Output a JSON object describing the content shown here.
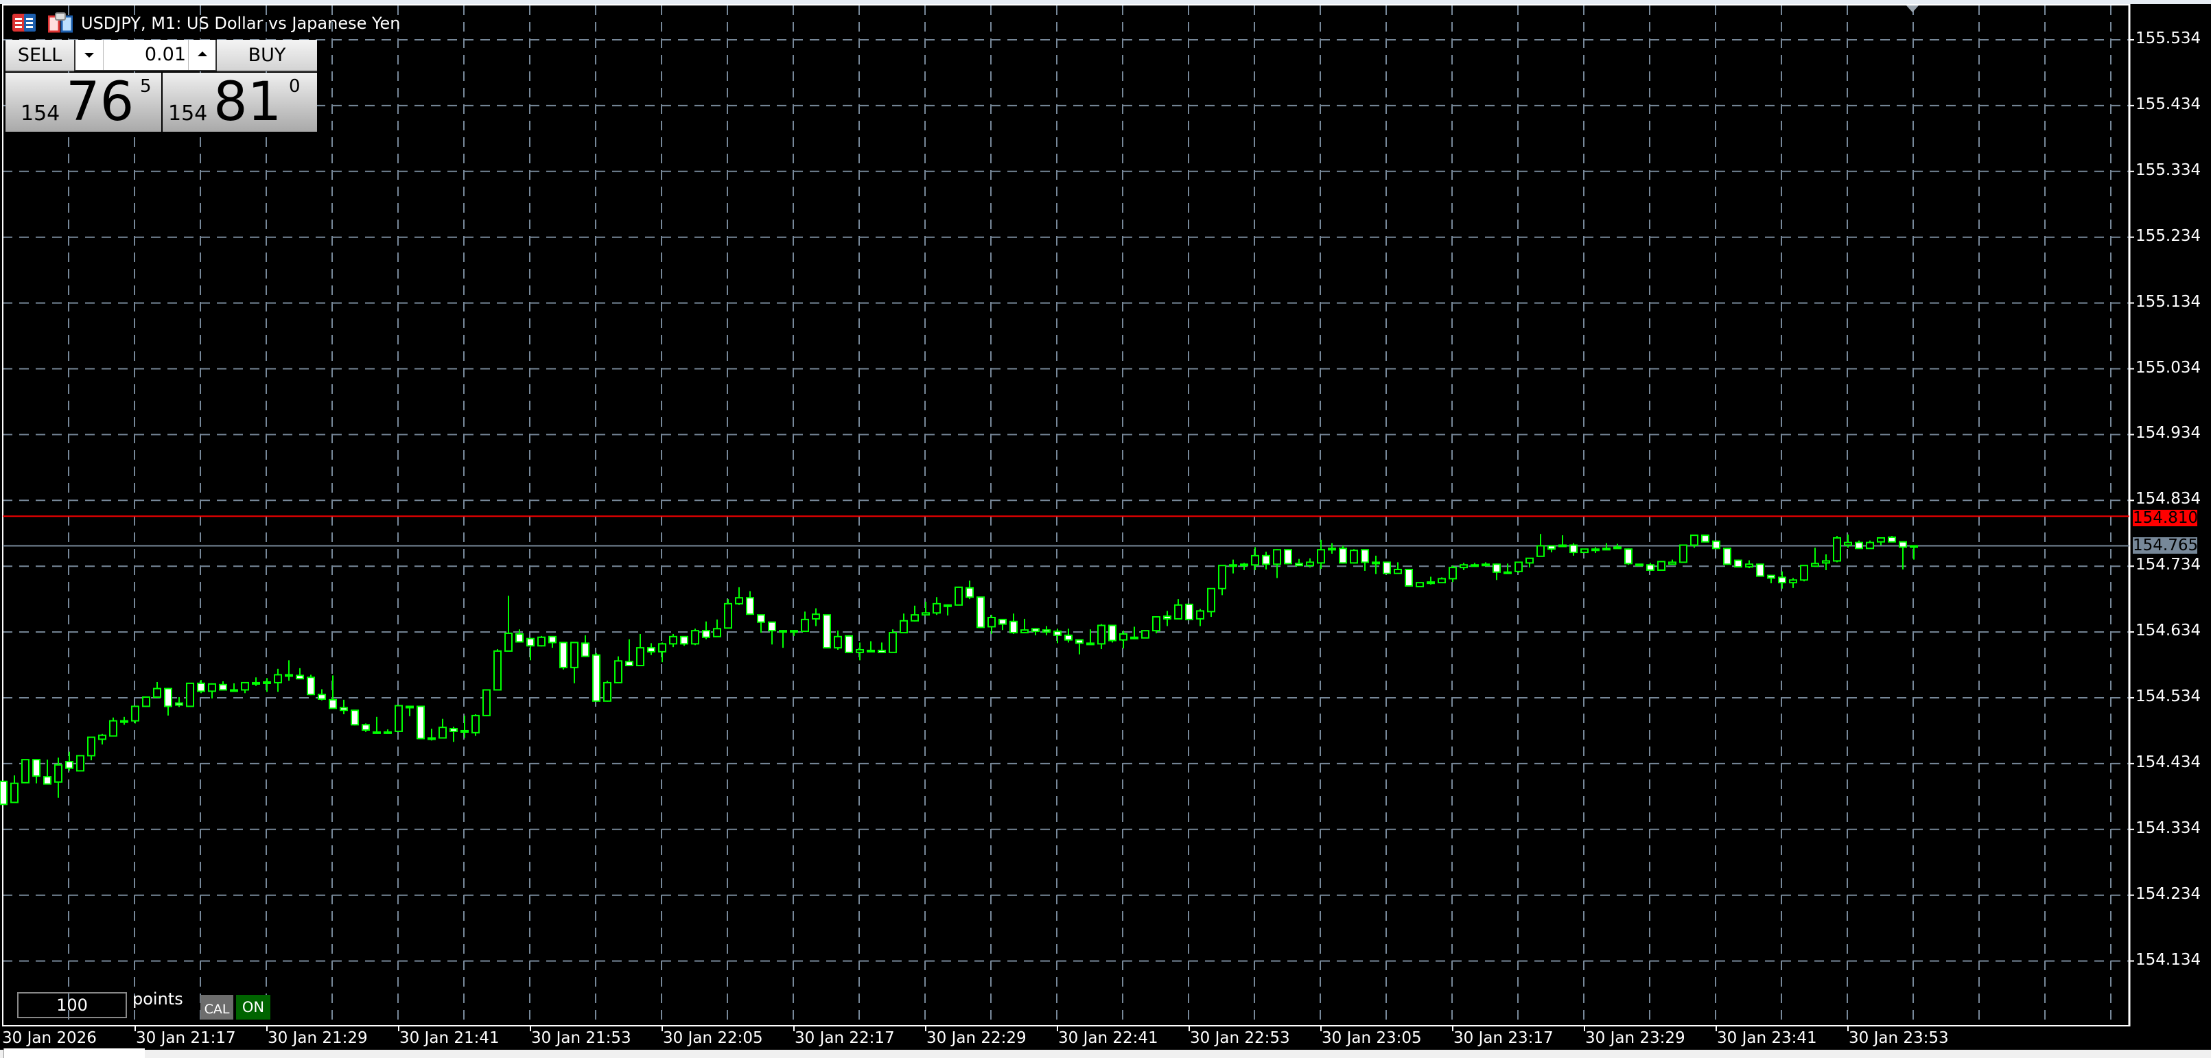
{
  "window": {
    "title": "USDJPY, M1:  US Dollar vs Japanese Yen",
    "icons": [
      "ticker-list-icon",
      "chart-window-icon"
    ]
  },
  "trade_panel": {
    "sell_label": "SELL",
    "buy_label": "BUY",
    "lot_value": "0.01",
    "sell_price": {
      "prefix": "154",
      "big": "76",
      "sup": "5"
    },
    "buy_price": {
      "prefix": "154",
      "big": "81",
      "sup": "0"
    }
  },
  "bottom_tools": {
    "points_value": "100",
    "points_label": "points",
    "cal_label": "CAL",
    "on_label": "ON"
  },
  "price_markers": {
    "ask": "154.810",
    "bid": "154.765",
    "ask_color": "#ff0000",
    "bid_color": "#778899"
  },
  "colors": {
    "background": "#000000",
    "grid": "#778899",
    "bull_outline": "#00ff00",
    "bear_fill": "#ffffff"
  },
  "chart_data": {
    "type": "candlestick",
    "symbol": "USDJPY",
    "timeframe": "M1",
    "grid": true,
    "ylim": [
      154.05,
      155.58
    ],
    "y_ticks": [
      "155.534",
      "155.434",
      "155.334",
      "155.234",
      "155.134",
      "155.034",
      "154.934",
      "154.834",
      "154.734",
      "154.634",
      "154.534",
      "154.434",
      "154.334",
      "154.234",
      "154.134"
    ],
    "x_ticks": [
      "30 Jan 2026",
      "30 Jan 21:17",
      "30 Jan 21:29",
      "30 Jan 21:41",
      "30 Jan 21:53",
      "30 Jan 22:05",
      "30 Jan 22:17",
      "30 Jan 22:29",
      "30 Jan 22:41",
      "30 Jan 22:53",
      "30 Jan 23:05",
      "30 Jan 23:17",
      "30 Jan 23:29",
      "30 Jan 23:41",
      "30 Jan 23:53"
    ],
    "candle_fields": [
      "time",
      "open",
      "high",
      "low",
      "close"
    ],
    "candles": [
      [
        "21:05",
        154.407,
        154.407,
        154.372,
        154.372
      ],
      [
        "21:06",
        154.375,
        154.416,
        154.375,
        154.404
      ],
      [
        "21:07",
        154.405,
        154.44,
        154.405,
        154.44
      ],
      [
        "21:08",
        154.44,
        154.44,
        154.404,
        154.415
      ],
      [
        "21:09",
        154.414,
        154.44,
        154.403,
        154.403
      ],
      [
        "21:10",
        154.406,
        154.443,
        154.382,
        154.432
      ],
      [
        "21:11",
        154.437,
        154.452,
        154.423,
        154.427
      ],
      [
        "21:12",
        154.423,
        154.446,
        154.423,
        154.446
      ],
      [
        "21:13",
        154.446,
        154.474,
        154.439,
        154.474
      ],
      [
        "21:14",
        154.471,
        154.479,
        154.463,
        154.477
      ],
      [
        "21:15",
        154.476,
        154.504,
        154.476,
        154.499
      ],
      [
        "21:16",
        154.499,
        154.505,
        154.493,
        154.499
      ],
      [
        "21:17",
        154.499,
        154.522,
        154.495,
        154.521
      ],
      [
        "21:18",
        154.521,
        154.535,
        154.52,
        154.535
      ],
      [
        "21:19",
        154.535,
        154.558,
        154.535,
        154.548
      ],
      [
        "21:20",
        154.548,
        154.549,
        154.507,
        154.521
      ],
      [
        "21:21",
        154.526,
        154.535,
        154.52,
        154.523
      ],
      [
        "21:22",
        154.521,
        154.556,
        154.521,
        154.556
      ],
      [
        "21:23",
        154.556,
        154.561,
        154.541,
        154.544
      ],
      [
        "21:24",
        154.544,
        154.556,
        154.533,
        154.555
      ],
      [
        "21:25",
        154.554,
        154.559,
        154.546,
        154.546
      ],
      [
        "21:26",
        154.546,
        154.556,
        154.543,
        154.546
      ],
      [
        "21:27",
        154.546,
        154.558,
        154.541,
        154.557
      ],
      [
        "21:28",
        154.557,
        154.565,
        154.552,
        154.557
      ],
      [
        "21:29",
        154.558,
        154.564,
        154.543,
        154.558
      ],
      [
        "21:30",
        154.557,
        154.578,
        154.543,
        154.569
      ],
      [
        "21:31",
        154.569,
        154.591,
        154.56,
        154.569
      ],
      [
        "21:32",
        154.568,
        154.579,
        154.563,
        154.563
      ],
      [
        "21:33",
        154.565,
        154.569,
        154.538,
        154.539
      ],
      [
        "21:34",
        154.539,
        154.547,
        154.53,
        154.532
      ],
      [
        "21:35",
        154.531,
        154.568,
        154.518,
        154.518
      ],
      [
        "21:36",
        154.519,
        154.531,
        154.509,
        154.515
      ],
      [
        "21:37",
        154.515,
        154.515,
        154.492,
        154.493
      ],
      [
        "21:38",
        154.493,
        154.495,
        154.482,
        154.485
      ],
      [
        "21:39",
        154.482,
        154.505,
        154.482,
        154.482
      ],
      [
        "21:40",
        154.482,
        154.486,
        154.482,
        154.482
      ],
      [
        "21:41",
        154.483,
        154.522,
        154.483,
        154.522
      ],
      [
        "21:42",
        154.521,
        154.521,
        154.506,
        154.521
      ],
      [
        "21:43",
        154.521,
        154.521,
        154.472,
        154.472
      ],
      [
        "21:44",
        154.473,
        154.487,
        154.469,
        154.473
      ],
      [
        "21:45",
        154.473,
        154.502,
        154.472,
        154.489
      ],
      [
        "21:46",
        154.487,
        154.49,
        154.467,
        154.483
      ],
      [
        "21:47",
        154.484,
        154.507,
        154.473,
        154.482
      ],
      [
        "21:48",
        154.481,
        154.509,
        154.476,
        154.507
      ],
      [
        "21:49",
        154.507,
        154.547,
        154.506,
        154.546
      ],
      [
        "21:50",
        154.546,
        154.608,
        154.546,
        154.605
      ],
      [
        "21:51",
        154.605,
        154.689,
        154.605,
        154.632
      ],
      [
        "21:52",
        154.631,
        154.638,
        154.619,
        154.619
      ],
      [
        "21:53",
        154.624,
        154.624,
        154.591,
        154.613
      ],
      [
        "21:54",
        154.613,
        154.628,
        154.612,
        154.626
      ],
      [
        "21:55",
        154.627,
        154.627,
        154.61,
        154.618
      ],
      [
        "21:56",
        154.618,
        154.618,
        154.577,
        154.58
      ],
      [
        "21:57",
        154.58,
        154.619,
        154.556,
        154.618
      ],
      [
        "21:58",
        154.617,
        154.629,
        154.597,
        154.597
      ],
      [
        "21:59",
        154.599,
        154.602,
        154.528,
        154.529
      ],
      [
        "22:00",
        154.529,
        154.56,
        154.528,
        154.557
      ],
      [
        "22:01",
        154.557,
        154.597,
        154.556,
        154.59
      ],
      [
        "22:02",
        154.589,
        154.623,
        154.583,
        154.583
      ],
      [
        "22:03",
        154.583,
        154.631,
        154.582,
        154.61
      ],
      [
        "22:04",
        154.61,
        154.617,
        154.599,
        154.604
      ],
      [
        "22:05",
        154.604,
        154.618,
        154.588,
        154.616
      ],
      [
        "22:06",
        154.616,
        154.631,
        154.611,
        154.627
      ],
      [
        "22:07",
        154.627,
        154.627,
        154.613,
        154.616
      ],
      [
        "22:08",
        154.616,
        154.639,
        154.614,
        154.636
      ],
      [
        "22:09",
        154.636,
        154.65,
        154.623,
        154.626
      ],
      [
        "22:10",
        154.627,
        154.653,
        154.627,
        154.639
      ],
      [
        "22:11",
        154.64,
        154.684,
        154.64,
        154.677
      ],
      [
        "22:12",
        154.677,
        154.702,
        154.675,
        154.686
      ],
      [
        "22:13",
        154.686,
        154.696,
        154.661,
        154.661
      ],
      [
        "22:14",
        154.66,
        154.66,
        154.633,
        154.649
      ],
      [
        "22:15",
        154.649,
        154.649,
        154.615,
        154.636
      ],
      [
        "22:16",
        154.636,
        154.637,
        154.61,
        154.636
      ],
      [
        "22:17",
        154.636,
        154.637,
        154.628,
        154.634
      ],
      [
        "22:18",
        154.635,
        154.665,
        154.635,
        154.653
      ],
      [
        "22:19",
        154.654,
        154.67,
        154.643,
        154.661
      ],
      [
        "22:20",
        154.66,
        154.66,
        154.61,
        154.61
      ],
      [
        "22:21",
        154.61,
        154.636,
        154.607,
        154.627
      ],
      [
        "22:22",
        154.628,
        154.629,
        154.602,
        154.603
      ],
      [
        "22:23",
        154.603,
        154.618,
        154.591,
        154.607
      ],
      [
        "22:24",
        154.606,
        154.62,
        154.606,
        154.606
      ],
      [
        "22:25",
        154.606,
        154.618,
        154.603,
        154.603
      ],
      [
        "22:26",
        154.603,
        154.638,
        154.603,
        154.633
      ],
      [
        "22:27",
        154.633,
        154.662,
        154.632,
        154.651
      ],
      [
        "22:28",
        154.651,
        154.674,
        154.65,
        154.66
      ],
      [
        "22:29",
        154.66,
        154.68,
        154.66,
        154.663
      ],
      [
        "22:30",
        154.663,
        154.687,
        154.66,
        154.677
      ],
      [
        "22:31",
        154.675,
        154.676,
        154.659,
        154.675
      ],
      [
        "22:32",
        154.675,
        154.703,
        154.675,
        154.702
      ],
      [
        "22:33",
        154.701,
        154.712,
        154.684,
        154.687
      ],
      [
        "22:34",
        154.687,
        154.687,
        154.64,
        154.641
      ],
      [
        "22:35",
        154.642,
        154.66,
        154.631,
        154.656
      ],
      [
        "22:36",
        154.653,
        154.653,
        154.637,
        154.646
      ],
      [
        "22:37",
        154.65,
        154.662,
        154.631,
        154.633
      ],
      [
        "22:38",
        154.633,
        154.654,
        154.633,
        154.637
      ],
      [
        "22:39",
        154.639,
        154.639,
        154.629,
        154.635
      ],
      [
        "22:40",
        154.637,
        154.643,
        154.629,
        154.634
      ],
      [
        "22:41",
        154.635,
        154.639,
        154.617,
        154.629
      ],
      [
        "22:42",
        154.629,
        154.639,
        154.618,
        154.622
      ],
      [
        "22:43",
        154.622,
        154.622,
        154.6,
        154.617
      ],
      [
        "22:44",
        154.617,
        154.638,
        154.617,
        154.617
      ],
      [
        "22:45",
        154.616,
        154.646,
        154.608,
        154.644
      ],
      [
        "22:46",
        154.644,
        154.644,
        154.618,
        154.621
      ],
      [
        "22:47",
        154.622,
        154.636,
        154.609,
        154.631
      ],
      [
        "22:48",
        154.626,
        154.642,
        154.623,
        154.624
      ],
      [
        "22:49",
        154.625,
        154.636,
        154.625,
        154.636
      ],
      [
        "22:50",
        154.636,
        154.658,
        154.632,
        154.657
      ],
      [
        "22:51",
        154.658,
        154.666,
        154.643,
        154.654
      ],
      [
        "22:52",
        154.654,
        154.684,
        154.654,
        154.675
      ],
      [
        "22:53",
        154.676,
        154.676,
        154.653,
        154.653
      ],
      [
        "22:54",
        154.654,
        154.669,
        154.643,
        154.666
      ],
      [
        "22:55",
        154.665,
        154.7,
        154.657,
        154.7
      ],
      [
        "22:56",
        154.7,
        154.735,
        154.69,
        154.735
      ],
      [
        "22:57",
        154.736,
        154.744,
        154.723,
        154.736
      ],
      [
        "22:58",
        154.737,
        154.739,
        154.728,
        154.735
      ],
      [
        "22:59",
        154.736,
        154.763,
        154.728,
        154.75
      ],
      [
        "23:00",
        154.75,
        154.756,
        154.729,
        154.737
      ],
      [
        "23:01",
        154.737,
        154.76,
        154.716,
        154.759
      ],
      [
        "23:02",
        154.759,
        154.76,
        154.737,
        154.738
      ],
      [
        "23:03",
        154.738,
        154.745,
        154.735,
        154.735
      ],
      [
        "23:04",
        154.735,
        154.746,
        154.732,
        154.74
      ],
      [
        "23:05",
        154.739,
        154.774,
        154.73,
        154.759
      ],
      [
        "23:06",
        154.761,
        154.769,
        154.753,
        154.759
      ],
      [
        "23:07",
        154.761,
        154.765,
        154.738,
        154.739
      ],
      [
        "23:08",
        154.739,
        154.76,
        154.738,
        154.758
      ],
      [
        "23:09",
        154.759,
        154.759,
        154.727,
        154.74
      ],
      [
        "23:10",
        154.74,
        154.75,
        154.722,
        154.738
      ],
      [
        "23:11",
        154.74,
        154.74,
        154.723,
        154.723
      ],
      [
        "23:12",
        154.723,
        154.74,
        154.723,
        154.729
      ],
      [
        "23:13",
        154.729,
        154.729,
        154.703,
        154.704
      ],
      [
        "23:14",
        154.703,
        154.709,
        154.703,
        154.709
      ],
      [
        "23:15",
        154.71,
        154.718,
        154.706,
        154.71
      ],
      [
        "23:16",
        154.709,
        154.717,
        154.709,
        154.715
      ],
      [
        "23:17",
        154.715,
        154.735,
        154.71,
        154.732
      ],
      [
        "23:18",
        154.732,
        154.739,
        154.728,
        154.736
      ],
      [
        "23:19",
        154.736,
        154.739,
        154.733,
        154.736
      ],
      [
        "23:20",
        154.737,
        154.74,
        154.736,
        154.736
      ],
      [
        "23:21",
        154.737,
        154.738,
        154.713,
        154.725
      ],
      [
        "23:22",
        154.725,
        154.738,
        154.725,
        154.725
      ],
      [
        "23:23",
        154.726,
        154.74,
        154.724,
        154.74
      ],
      [
        "23:24",
        154.739,
        154.746,
        154.732,
        154.746
      ],
      [
        "23:25",
        154.749,
        154.783,
        154.749,
        154.765
      ],
      [
        "23:26",
        154.765,
        154.765,
        154.755,
        154.76
      ],
      [
        "23:27",
        154.766,
        154.781,
        154.763,
        154.766
      ],
      [
        "23:28",
        154.766,
        154.769,
        154.75,
        154.755
      ],
      [
        "23:29",
        154.755,
        154.76,
        154.755,
        154.76
      ],
      [
        "23:30",
        154.76,
        154.763,
        154.754,
        154.758
      ],
      [
        "23:31",
        154.761,
        154.769,
        154.761,
        154.761
      ],
      [
        "23:32",
        154.763,
        154.768,
        154.761,
        154.761
      ],
      [
        "23:33",
        154.76,
        154.761,
        154.736,
        154.738
      ],
      [
        "23:34",
        154.737,
        154.737,
        154.734,
        154.737
      ],
      [
        "23:35",
        154.736,
        154.739,
        154.727,
        154.728
      ],
      [
        "23:36",
        154.728,
        154.742,
        154.728,
        154.741
      ],
      [
        "23:37",
        154.737,
        154.744,
        154.737,
        154.74
      ],
      [
        "23:38",
        154.74,
        154.766,
        154.74,
        154.766
      ],
      [
        "23:39",
        154.766,
        154.781,
        154.762,
        154.781
      ],
      [
        "23:40",
        154.781,
        154.781,
        154.771,
        154.771
      ],
      [
        "23:41",
        154.772,
        154.773,
        154.76,
        154.761
      ],
      [
        "23:42",
        154.761,
        154.761,
        154.736,
        154.737
      ],
      [
        "23:43",
        154.743,
        154.744,
        154.733,
        154.733
      ],
      [
        "23:44",
        154.733,
        154.743,
        154.731,
        154.737
      ],
      [
        "23:45",
        154.737,
        154.737,
        154.719,
        154.719
      ],
      [
        "23:46",
        154.72,
        154.72,
        154.708,
        154.716
      ],
      [
        "23:47",
        154.717,
        154.726,
        154.7,
        154.709
      ],
      [
        "23:48",
        154.709,
        154.716,
        154.701,
        154.713
      ],
      [
        "23:49",
        154.713,
        154.735,
        154.711,
        154.735
      ],
      [
        "23:50",
        154.734,
        154.762,
        154.734,
        154.738
      ],
      [
        "23:51",
        154.739,
        154.752,
        154.728,
        154.742
      ],
      [
        "23:52",
        154.742,
        154.78,
        154.74,
        154.777
      ],
      [
        "23:53",
        154.766,
        154.782,
        154.762,
        154.77
      ],
      [
        "23:54",
        154.77,
        154.773,
        154.761,
        154.761
      ],
      [
        "23:55",
        154.761,
        154.773,
        154.761,
        154.77
      ],
      [
        "23:56",
        154.771,
        154.777,
        154.766,
        154.777
      ],
      [
        "23:57",
        154.778,
        154.78,
        154.771,
        154.771
      ],
      [
        "23:58",
        154.771,
        154.771,
        154.729,
        154.763
      ],
      [
        "23:59",
        154.764,
        154.765,
        154.744,
        154.765
      ]
    ]
  }
}
